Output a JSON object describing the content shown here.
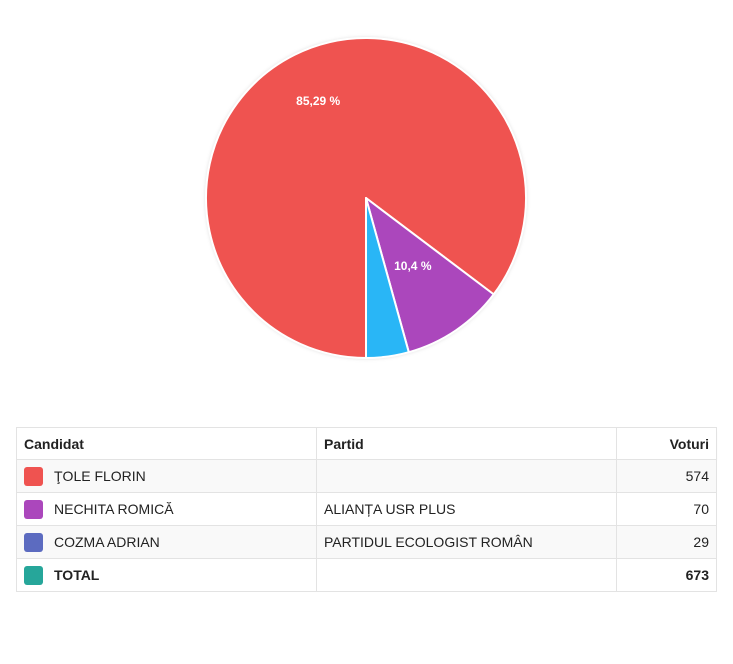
{
  "chart_data": {
    "type": "pie",
    "slices": [
      {
        "label": "ŢOLE FLORIN",
        "value": 574,
        "color": "#ef5350",
        "pct_label": "85,29 %"
      },
      {
        "label": "NECHITA ROMICĂ",
        "value": 70,
        "color": "#ab47bc",
        "pct_label": "10,4 %"
      },
      {
        "label": "COZMA ADRIAN",
        "value": 29,
        "color": "#29b6f6",
        "pct_label": ""
      }
    ]
  },
  "table": {
    "headers": {
      "candidate": "Candidat",
      "party": "Partid",
      "votes": "Voturi"
    },
    "rows": [
      {
        "candidate": "ŢOLE FLORIN",
        "party": "",
        "votes": "574",
        "color": "#ef5350"
      },
      {
        "candidate": "NECHITA ROMICĂ",
        "party": "ALIANȚA USR PLUS",
        "votes": "70",
        "color": "#ab47bc"
      },
      {
        "candidate": "COZMA ADRIAN",
        "party": "PARTIDUL ECOLOGIST ROMÂN",
        "votes": "29",
        "color": "#5c6bc0"
      }
    ],
    "total": {
      "candidate": "TOTAL",
      "party": "",
      "votes": "673",
      "color": "#26a69a"
    }
  }
}
